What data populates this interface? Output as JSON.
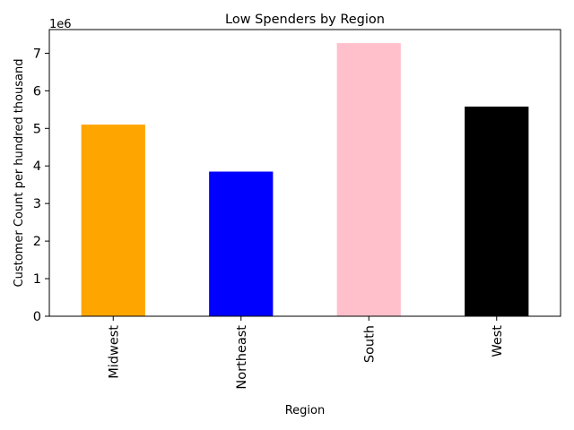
{
  "chart_data": {
    "type": "bar",
    "title": "Low Spenders by Region",
    "xlabel": "Region",
    "ylabel": "Customer Count per hundred thousand",
    "offset_label": "1e6",
    "categories": [
      "Midwest",
      "Northeast",
      "South",
      "West"
    ],
    "values": [
      5100000,
      3850000,
      7270000,
      5580000
    ],
    "colors": [
      "#ffa500",
      "#0000ff",
      "#ffc0cb",
      "#000000"
    ],
    "yticks": [
      "0",
      "1",
      "2",
      "3",
      "4",
      "5",
      "6",
      "7"
    ],
    "ytick_values": [
      0,
      1000000,
      2000000,
      3000000,
      4000000,
      5000000,
      6000000,
      7000000
    ],
    "ylim": [
      0,
      7630000
    ],
    "grid": false,
    "legend": "none"
  }
}
